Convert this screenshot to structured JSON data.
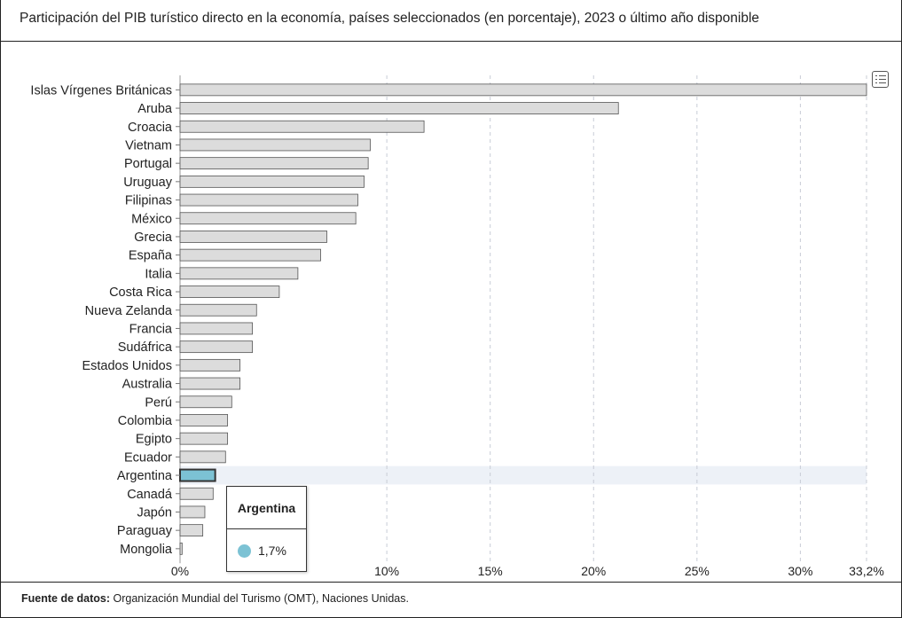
{
  "title": "Participación del PIB turístico directo en la economía, países seleccionados (en porcentaje), 2023 o último año disponible",
  "source": {
    "label": "Fuente de datos:",
    "text": "Organización Mundial del Turismo (OMT), Naciones Unidas."
  },
  "menu": {
    "icon": "list-menu-icon"
  },
  "tooltip": {
    "name": "Argentina",
    "value": "1,7%"
  },
  "colors": {
    "bar": "#dcdcdc",
    "bar_stroke": "#555555",
    "highlight": "#7cc2d4",
    "highlight_band": "#edf1f7",
    "grid": "#c8ccd6"
  },
  "chart_data": {
    "type": "bar",
    "orientation": "horizontal",
    "categories": [
      "Islas Vírgenes Británicas",
      "Aruba",
      "Croacia",
      "Vietnam",
      "Portugal",
      "Uruguay",
      "Filipinas",
      "México",
      "Grecia",
      "España",
      "Italia",
      "Costa Rica",
      "Nueva Zelanda",
      "Francia",
      "Sudáfrica",
      "Estados Unidos",
      "Australia",
      "Perú",
      "Colombia",
      "Egipto",
      "Ecuador",
      "Argentina",
      "Canadá",
      "Japón",
      "Paraguay",
      "Mongolia"
    ],
    "values": [
      33.2,
      21.2,
      11.8,
      9.2,
      9.1,
      8.9,
      8.6,
      8.5,
      7.1,
      6.8,
      5.7,
      4.8,
      3.7,
      3.5,
      3.5,
      2.9,
      2.9,
      2.5,
      2.3,
      2.3,
      2.2,
      1.7,
      1.6,
      1.2,
      1.1,
      0.1
    ],
    "highlighted": "Argentina",
    "xlim": [
      0,
      33.2
    ],
    "xticks": [
      0,
      10,
      15,
      20,
      25,
      30,
      33.2
    ],
    "xtick_labels": [
      "0%",
      "10%",
      "15%",
      "20%",
      "25%",
      "30%",
      "33,2%"
    ],
    "xlabel": "",
    "ylabel": "",
    "grid": "vertical dashed",
    "legend": "none"
  }
}
